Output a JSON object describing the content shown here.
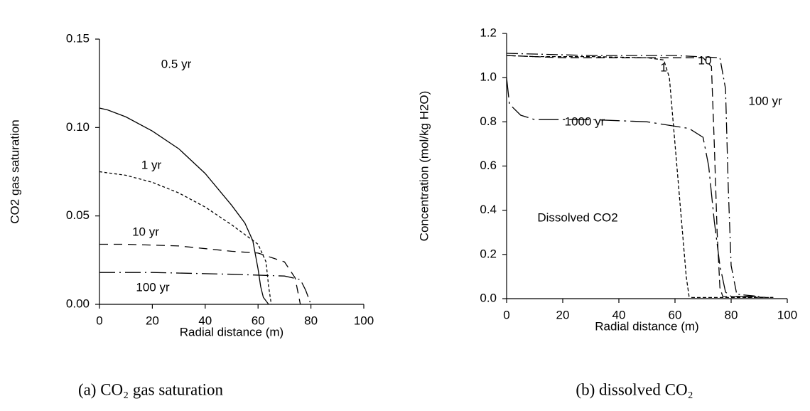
{
  "chart_data": [
    {
      "type": "line",
      "caption": "(a) CO₂ gas saturation",
      "x_label": "Radial distance (m)",
      "y_label": "CO2 gas saturation",
      "xlim": [
        0,
        100
      ],
      "xticks": [
        0,
        20,
        40,
        60,
        80,
        100
      ],
      "ylim": [
        0,
        0.15
      ],
      "yticks": [
        {
          "value": 0,
          "label": "0.00"
        },
        0.05,
        {
          "value": 0.1,
          "label": "0.10"
        },
        0.15
      ],
      "series": [
        {
          "name": "0.5 yr",
          "color": "#000000",
          "dash": "none",
          "x": [
            0,
            3,
            10,
            20,
            30,
            40,
            50,
            55,
            58,
            60,
            61,
            62,
            64
          ],
          "values": [
            0.111,
            0.11,
            0.106,
            0.098,
            0.088,
            0.074,
            0.056,
            0.046,
            0.036,
            0.02,
            0.01,
            0.004,
            0
          ]
        },
        {
          "name": "1 yr",
          "color": "#000000",
          "dash": "4,3",
          "x": [
            0,
            10,
            20,
            30,
            40,
            50,
            60,
            63,
            64,
            65
          ],
          "values": [
            0.075,
            0.073,
            0.069,
            0.063,
            0.055,
            0.045,
            0.034,
            0.024,
            0.01,
            0
          ]
        },
        {
          "name": "10 yr",
          "color": "#000000",
          "dash": "12,8",
          "x": [
            0,
            10,
            30,
            50,
            60,
            70,
            74,
            76
          ],
          "values": [
            0.034,
            0.034,
            0.033,
            0.03,
            0.029,
            0.024,
            0.015,
            0
          ]
        },
        {
          "name": "100 yr",
          "color": "#000000",
          "dash": "22,6,2,6",
          "x": [
            0,
            20,
            50,
            70,
            76,
            78,
            80
          ],
          "values": [
            0.018,
            0.018,
            0.017,
            0.016,
            0.014,
            0.008,
            0
          ]
        }
      ]
    },
    {
      "type": "line",
      "caption": "(b) dissolved CO₂",
      "x_label": "Radial distance (m)",
      "y_label": "Concentration (mol/kg H2O)",
      "annotation": "Dissolved CO2",
      "xlim": [
        0,
        100
      ],
      "xticks": [
        0,
        20,
        40,
        60,
        80,
        100
      ],
      "ylim": [
        0,
        1.2
      ],
      "yticks": [
        {
          "value": 0,
          "label": "0.0"
        },
        0.2,
        0.4,
        0.6,
        0.8,
        {
          "value": 1,
          "label": "1.0"
        },
        1.2
      ],
      "series": [
        {
          "name": "1",
          "color": "#000000",
          "dash": "5,3",
          "x": [
            0,
            10,
            30,
            50,
            56,
            58,
            60,
            62,
            64,
            65,
            66,
            95
          ],
          "values": [
            1.1,
            1.095,
            1.095,
            1.09,
            1.08,
            1.0,
            0.7,
            0.4,
            0.1,
            0.01,
            0.005,
            0.005
          ]
        },
        {
          "name": "10",
          "color": "#000000",
          "dash": "12,6",
          "x": [
            0,
            20,
            50,
            70,
            73,
            74,
            75,
            76,
            77,
            95
          ],
          "values": [
            1.1,
            1.09,
            1.09,
            1.09,
            1.05,
            0.7,
            0.3,
            0.05,
            0.01,
            0.005
          ]
        },
        {
          "name": "100 yr",
          "color": "#000000",
          "dash": "16,5,2,5",
          "x": [
            0,
            30,
            60,
            76,
            78,
            79,
            80,
            82,
            90
          ],
          "values": [
            1.11,
            1.1,
            1.1,
            1.09,
            0.95,
            0.5,
            0.15,
            0.02,
            0.01
          ]
        },
        {
          "name": "1000 yr",
          "color": "#000000",
          "dash": "28,6,3,6",
          "x": [
            0,
            1,
            5,
            10,
            30,
            50,
            60,
            65,
            70,
            72,
            74,
            76,
            78,
            80,
            90
          ],
          "values": [
            1.0,
            0.88,
            0.83,
            0.81,
            0.81,
            0.8,
            0.78,
            0.77,
            0.73,
            0.6,
            0.35,
            0.15,
            0.03,
            0.01,
            0.01
          ]
        }
      ]
    }
  ]
}
